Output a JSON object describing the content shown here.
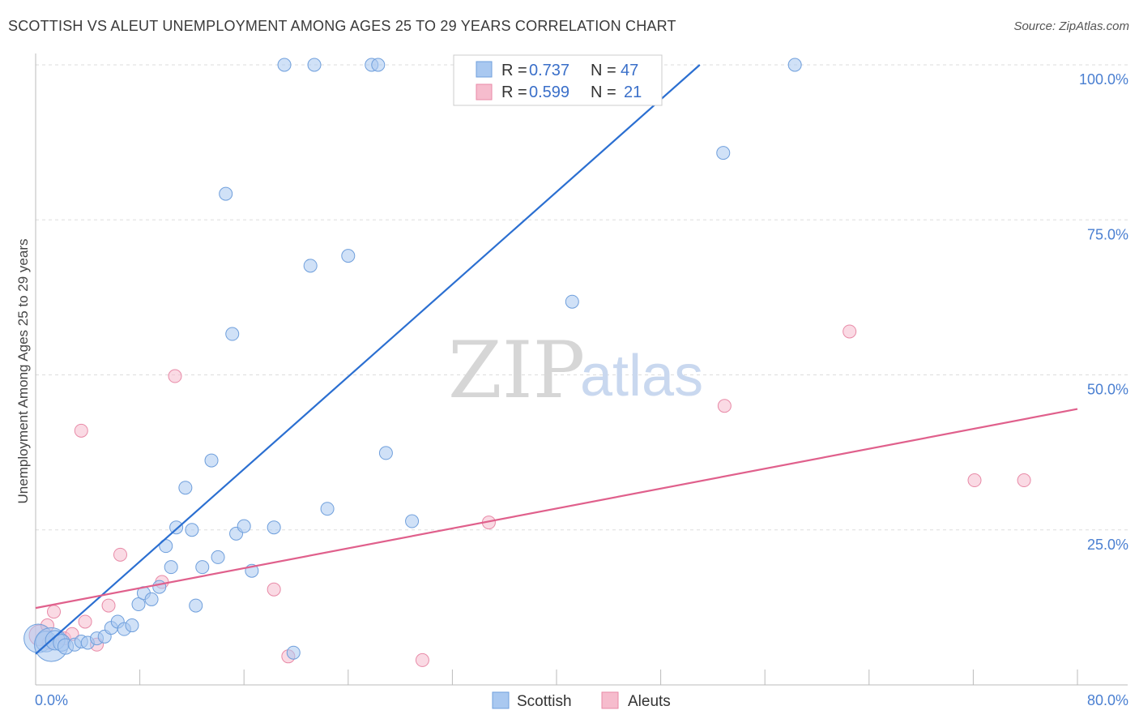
{
  "header": {
    "title": "SCOTTISH VS ALEUT UNEMPLOYMENT AMONG AGES 25 TO 29 YEARS CORRELATION CHART",
    "source": "Source: ZipAtlas.com"
  },
  "watermark": {
    "zip": "ZIP",
    "atlas": "atlas"
  },
  "colors": {
    "scottish_fill": "#a9c8f0",
    "scottish_stroke": "#6f9fdc",
    "scottish_line": "#2b6fd1",
    "aleut_fill": "#f6bccd",
    "aleut_stroke": "#e88aa7",
    "aleut_line": "#e0608c",
    "tick_text": "#4a7fd1",
    "grid": "#dddddd"
  },
  "legend": {
    "rows": [
      {
        "r_label": "R = ",
        "r_value": "0.737",
        "n_label": "N = ",
        "n_value": "47"
      },
      {
        "r_label": "R = ",
        "r_value": "0.599",
        "n_label": "N = ",
        "n_value": "21"
      }
    ]
  },
  "bottom_legend": {
    "items": [
      "Scottish",
      "Aleuts"
    ]
  },
  "chart_data": {
    "type": "scatter",
    "title": "SCOTTISH VS ALEUT UNEMPLOYMENT AMONG AGES 25 TO 29 YEARS CORRELATION CHART",
    "xlabel": "",
    "ylabel": "Unemployment Among Ages 25 to 29 years",
    "xlim": [
      0,
      80
    ],
    "ylim": [
      0,
      100
    ],
    "x_tick_labels": [
      "0.0%",
      "80.0%"
    ],
    "y_ticks": [
      25,
      50,
      75,
      100
    ],
    "y_tick_labels": [
      "25.0%",
      "50.0%",
      "75.0%",
      "100.0%"
    ],
    "grid": true,
    "legend_position": "top-center",
    "series": [
      {
        "name": "Scottish",
        "r": 0.737,
        "n": 47,
        "trend": {
          "x": [
            0,
            51
          ],
          "y": [
            5.0,
            100.0
          ]
        },
        "points": [
          {
            "x": 0.2,
            "y": 7.5,
            "s": 2.2
          },
          {
            "x": 0.8,
            "y": 7.0,
            "s": 1.6
          },
          {
            "x": 1.2,
            "y": 6.5,
            "s": 2.6
          },
          {
            "x": 1.5,
            "y": 7.2,
            "s": 1.5
          },
          {
            "x": 2.0,
            "y": 6.8,
            "s": 1.3
          },
          {
            "x": 2.3,
            "y": 6.2,
            "s": 1.2
          },
          {
            "x": 3.0,
            "y": 6.5,
            "s": 1
          },
          {
            "x": 3.5,
            "y": 7.0,
            "s": 1
          },
          {
            "x": 4.0,
            "y": 6.8,
            "s": 1
          },
          {
            "x": 4.7,
            "y": 7.5,
            "s": 1
          },
          {
            "x": 5.3,
            "y": 7.8,
            "s": 1
          },
          {
            "x": 5.8,
            "y": 9.2,
            "s": 1
          },
          {
            "x": 6.3,
            "y": 10.2,
            "s": 1
          },
          {
            "x": 6.8,
            "y": 9.0,
            "s": 1
          },
          {
            "x": 7.4,
            "y": 9.6,
            "s": 1
          },
          {
            "x": 7.9,
            "y": 13.0,
            "s": 1
          },
          {
            "x": 8.3,
            "y": 14.8,
            "s": 1
          },
          {
            "x": 8.9,
            "y": 13.8,
            "s": 1
          },
          {
            "x": 9.5,
            "y": 15.8,
            "s": 1
          },
          {
            "x": 10.0,
            "y": 22.4,
            "s": 1
          },
          {
            "x": 10.4,
            "y": 19.0,
            "s": 1
          },
          {
            "x": 10.8,
            "y": 25.4,
            "s": 1
          },
          {
            "x": 11.5,
            "y": 31.8,
            "s": 1
          },
          {
            "x": 12.0,
            "y": 25.0,
            "s": 1
          },
          {
            "x": 12.3,
            "y": 12.8,
            "s": 1
          },
          {
            "x": 12.8,
            "y": 19.0,
            "s": 1
          },
          {
            "x": 13.5,
            "y": 36.2,
            "s": 1
          },
          {
            "x": 14.0,
            "y": 20.6,
            "s": 1
          },
          {
            "x": 14.6,
            "y": 79.2,
            "s": 1
          },
          {
            "x": 15.1,
            "y": 56.6,
            "s": 1
          },
          {
            "x": 15.4,
            "y": 24.4,
            "s": 1
          },
          {
            "x": 16.0,
            "y": 25.6,
            "s": 1
          },
          {
            "x": 16.6,
            "y": 18.4,
            "s": 1
          },
          {
            "x": 18.3,
            "y": 25.4,
            "s": 1
          },
          {
            "x": 19.1,
            "y": 100.0,
            "s": 1
          },
          {
            "x": 19.8,
            "y": 5.2,
            "s": 1
          },
          {
            "x": 21.1,
            "y": 67.6,
            "s": 1
          },
          {
            "x": 21.4,
            "y": 100.0,
            "s": 1
          },
          {
            "x": 22.4,
            "y": 28.4,
            "s": 1
          },
          {
            "x": 24.0,
            "y": 69.2,
            "s": 1
          },
          {
            "x": 25.8,
            "y": 100.0,
            "s": 1
          },
          {
            "x": 26.3,
            "y": 100.0,
            "s": 1
          },
          {
            "x": 26.9,
            "y": 37.4,
            "s": 1
          },
          {
            "x": 28.9,
            "y": 26.4,
            "s": 1
          },
          {
            "x": 41.2,
            "y": 61.8,
            "s": 1
          },
          {
            "x": 52.8,
            "y": 85.8,
            "s": 1
          },
          {
            "x": 58.3,
            "y": 100.0,
            "s": 1
          }
        ]
      },
      {
        "name": "Aleuts",
        "r": 0.599,
        "n": 21,
        "trend": {
          "x": [
            0,
            80
          ],
          "y": [
            12.4,
            44.5
          ]
        },
        "points": [
          {
            "x": 0.3,
            "y": 8.0,
            "s": 1.6
          },
          {
            "x": 0.9,
            "y": 9.6,
            "s": 1
          },
          {
            "x": 1.4,
            "y": 11.8,
            "s": 1
          },
          {
            "x": 2.2,
            "y": 7.5,
            "s": 1
          },
          {
            "x": 2.8,
            "y": 8.2,
            "s": 1
          },
          {
            "x": 3.5,
            "y": 41.0,
            "s": 1
          },
          {
            "x": 3.8,
            "y": 10.2,
            "s": 1
          },
          {
            "x": 4.7,
            "y": 6.5,
            "s": 1
          },
          {
            "x": 5.6,
            "y": 12.8,
            "s": 1
          },
          {
            "x": 6.5,
            "y": 21.0,
            "s": 1
          },
          {
            "x": 9.7,
            "y": 16.6,
            "s": 1
          },
          {
            "x": 10.7,
            "y": 49.8,
            "s": 1
          },
          {
            "x": 18.3,
            "y": 15.4,
            "s": 1
          },
          {
            "x": 19.4,
            "y": 4.6,
            "s": 1
          },
          {
            "x": 29.7,
            "y": 4.0,
            "s": 1
          },
          {
            "x": 34.8,
            "y": 26.2,
            "s": 1
          },
          {
            "x": 52.9,
            "y": 45.0,
            "s": 1
          },
          {
            "x": 62.5,
            "y": 57.0,
            "s": 1
          },
          {
            "x": 72.1,
            "y": 33.0,
            "s": 1
          },
          {
            "x": 75.9,
            "y": 33.0,
            "s": 1
          },
          {
            "x": 1.0,
            "y": 6.8,
            "s": 1
          }
        ]
      }
    ]
  }
}
